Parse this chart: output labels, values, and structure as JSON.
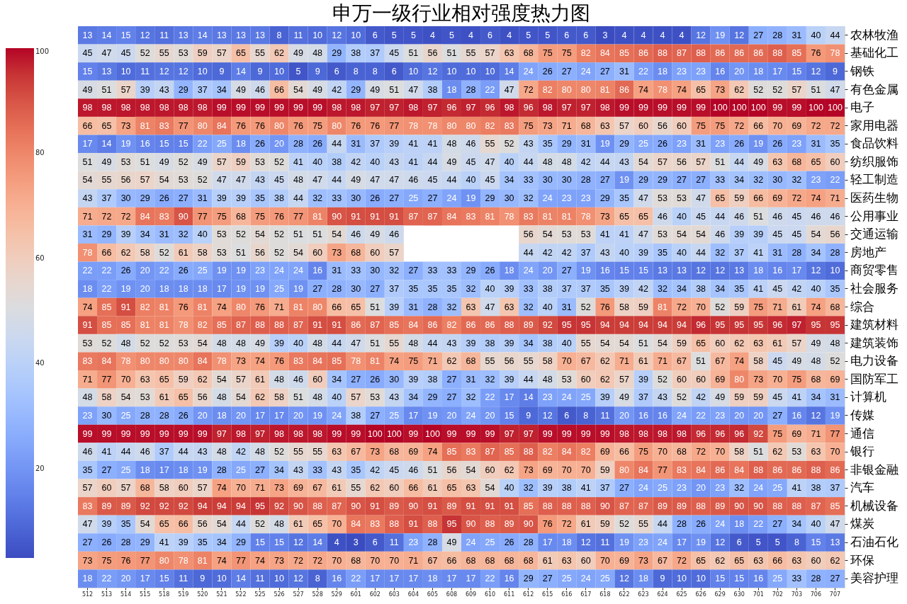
{
  "chart_data": {
    "type": "heatmap",
    "title": "申万一级行业相对强度热力图",
    "categories": [
      "512",
      "513",
      "514",
      "515",
      "518",
      "519",
      "520",
      "521",
      "522",
      "525",
      "526",
      "527",
      "528",
      "529",
      "601",
      "602",
      "603",
      "604",
      "605",
      "608",
      "609",
      "610",
      "611",
      "612",
      "615",
      "616",
      "617",
      "618",
      "622",
      "623",
      "624",
      "625",
      "626",
      "629",
      "630",
      "701",
      "702",
      "703",
      "706",
      "707"
    ],
    "y_categories": [
      "农林牧渔",
      "基础化工",
      "钢铁",
      "有色金属",
      "电子",
      "家用电器",
      "食品饮料",
      "纺织服饰",
      "轻工制造",
      "医药生物",
      "公用事业",
      "交通运输",
      "房地产",
      "商贸零售",
      "社会服务",
      "综合",
      "建筑材料",
      "建筑装饰",
      "电力设备",
      "国防军工",
      "计算机",
      "传媒",
      "通信",
      "银行",
      "非银金融",
      "汽车",
      "机械设备",
      "煤炭",
      "石油石化",
      "环保",
      "美容护理"
    ],
    "cells": [
      [
        13,
        14,
        15,
        12,
        11,
        13,
        14,
        13,
        13,
        13,
        8,
        11,
        10,
        12,
        10,
        6,
        5,
        5,
        4,
        5,
        4,
        6,
        4,
        5,
        5,
        6,
        6,
        3,
        4,
        4,
        4,
        4,
        12,
        19,
        12,
        27,
        28,
        31,
        40,
        44
      ],
      [
        45,
        47,
        45,
        52,
        55,
        53,
        59,
        57,
        65,
        55,
        62,
        49,
        48,
        29,
        38,
        37,
        45,
        51,
        56,
        51,
        55,
        57,
        63,
        68,
        75,
        75,
        82,
        84,
        85,
        86,
        88,
        87,
        88,
        86,
        86,
        86,
        88,
        85,
        76,
        78
      ],
      [
        15,
        13,
        10,
        11,
        12,
        12,
        10,
        9,
        14,
        9,
        10,
        5,
        9,
        6,
        8,
        8,
        6,
        10,
        12,
        10,
        10,
        10,
        14,
        24,
        26,
        27,
        24,
        27,
        31,
        22,
        18,
        23,
        23,
        16,
        20,
        18,
        17,
        15,
        12,
        9
      ],
      [
        49,
        51,
        57,
        39,
        43,
        29,
        37,
        34,
        49,
        46,
        66,
        54,
        49,
        42,
        29,
        49,
        51,
        47,
        38,
        18,
        28,
        22,
        47,
        72,
        82,
        80,
        80,
        81,
        86,
        74,
        78,
        74,
        65,
        73,
        62,
        52,
        52,
        57,
        51,
        47
      ],
      [
        98,
        98,
        98,
        98,
        98,
        98,
        98,
        99,
        99,
        99,
        99,
        99,
        99,
        98,
        98,
        97,
        97,
        98,
        97,
        96,
        97,
        96,
        98,
        96,
        98,
        97,
        97,
        98,
        99,
        99,
        99,
        99,
        99,
        100,
        100,
        100,
        99,
        99,
        100,
        100
      ],
      [
        66,
        65,
        73,
        81,
        83,
        77,
        80,
        84,
        76,
        76,
        80,
        76,
        75,
        80,
        76,
        76,
        77,
        78,
        78,
        80,
        80,
        82,
        83,
        75,
        73,
        71,
        68,
        63,
        57,
        60,
        56,
        60,
        75,
        75,
        72,
        66,
        70,
        69,
        72,
        72
      ],
      [
        17,
        14,
        19,
        16,
        15,
        15,
        22,
        25,
        18,
        26,
        20,
        28,
        26,
        44,
        31,
        37,
        39,
        41,
        41,
        48,
        46,
        55,
        52,
        43,
        35,
        29,
        31,
        19,
        29,
        25,
        26,
        23,
        31,
        23,
        26,
        19,
        26,
        23,
        31,
        35
      ],
      [
        51,
        49,
        53,
        51,
        49,
        52,
        49,
        57,
        59,
        53,
        52,
        41,
        40,
        38,
        42,
        40,
        43,
        41,
        44,
        49,
        45,
        47,
        40,
        44,
        48,
        48,
        42,
        44,
        43,
        54,
        57,
        56,
        57,
        51,
        44,
        49,
        63,
        68,
        65,
        60
      ],
      [
        54,
        55,
        56,
        57,
        54,
        53,
        52,
        47,
        47,
        43,
        45,
        48,
        47,
        44,
        49,
        47,
        47,
        46,
        45,
        44,
        40,
        45,
        34,
        33,
        30,
        30,
        28,
        27,
        19,
        29,
        29,
        27,
        27,
        33,
        34,
        32,
        30,
        32,
        23,
        22
      ],
      [
        43,
        37,
        30,
        29,
        26,
        27,
        31,
        39,
        39,
        35,
        38,
        44,
        32,
        33,
        30,
        26,
        27,
        25,
        27,
        24,
        19,
        29,
        30,
        32,
        24,
        23,
        23,
        29,
        35,
        47,
        53,
        53,
        47,
        65,
        59,
        66,
        69,
        72,
        74,
        71
      ],
      [
        71,
        72,
        72,
        84,
        83,
        90,
        77,
        75,
        68,
        75,
        76,
        77,
        81,
        90,
        91,
        91,
        91,
        87,
        87,
        84,
        83,
        81,
        78,
        83,
        81,
        81,
        78,
        73,
        65,
        65,
        46,
        40,
        45,
        44,
        46,
        51,
        46,
        45,
        46,
        46
      ],
      [
        31,
        29,
        39,
        34,
        31,
        32,
        40,
        53,
        52,
        54,
        52,
        51,
        51,
        54,
        46,
        49,
        46,
        null,
        null,
        null,
        null,
        null,
        null,
        56,
        54,
        53,
        53,
        41,
        41,
        47,
        53,
        54,
        54,
        46,
        39,
        39,
        45,
        45,
        54,
        56
      ],
      [
        78,
        66,
        62,
        58,
        52,
        61,
        58,
        53,
        51,
        56,
        52,
        54,
        60,
        73,
        68,
        60,
        57,
        null,
        null,
        null,
        null,
        null,
        null,
        44,
        42,
        42,
        37,
        43,
        40,
        39,
        35,
        40,
        44,
        32,
        37,
        41,
        31,
        28,
        34,
        28
      ],
      [
        22,
        22,
        26,
        20,
        22,
        26,
        25,
        19,
        19,
        23,
        24,
        24,
        16,
        31,
        33,
        30,
        32,
        27,
        33,
        33,
        29,
        26,
        18,
        24,
        20,
        27,
        19,
        16,
        15,
        15,
        13,
        13,
        12,
        12,
        13,
        18,
        16,
        17,
        12,
        10
      ],
      [
        18,
        22,
        19,
        20,
        18,
        18,
        18,
        17,
        19,
        19,
        25,
        19,
        27,
        28,
        30,
        27,
        37,
        35,
        35,
        35,
        32,
        40,
        39,
        33,
        38,
        37,
        37,
        35,
        39,
        42,
        32,
        34,
        38,
        34,
        35,
        41,
        45,
        42,
        40,
        35
      ],
      [
        74,
        85,
        91,
        82,
        81,
        76,
        81,
        74,
        80,
        76,
        71,
        81,
        80,
        66,
        65,
        51,
        39,
        31,
        28,
        32,
        63,
        47,
        63,
        32,
        40,
        31,
        52,
        76,
        58,
        59,
        81,
        72,
        70,
        52,
        59,
        75,
        71,
        61,
        74,
        68
      ],
      [
        91,
        85,
        85,
        81,
        81,
        78,
        82,
        85,
        87,
        88,
        88,
        87,
        91,
        91,
        86,
        87,
        85,
        84,
        86,
        82,
        86,
        86,
        88,
        89,
        92,
        95,
        95,
        94,
        94,
        94,
        94,
        94,
        96,
        95,
        95,
        95,
        96,
        97,
        95,
        95
      ],
      [
        53,
        52,
        48,
        52,
        52,
        53,
        54,
        48,
        48,
        49,
        39,
        40,
        48,
        44,
        47,
        51,
        55,
        48,
        44,
        43,
        39,
        38,
        39,
        34,
        38,
        40,
        55,
        54,
        54,
        51,
        54,
        59,
        65,
        60,
        62,
        63,
        61,
        57,
        49,
        48
      ],
      [
        83,
        84,
        78,
        80,
        80,
        80,
        84,
        78,
        73,
        74,
        76,
        83,
        84,
        85,
        78,
        81,
        74,
        75,
        71,
        62,
        68,
        55,
        56,
        55,
        58,
        70,
        67,
        62,
        71,
        61,
        71,
        67,
        51,
        67,
        74,
        58,
        45,
        49,
        48,
        52
      ],
      [
        71,
        77,
        70,
        63,
        65,
        59,
        62,
        54,
        57,
        61,
        48,
        46,
        60,
        34,
        27,
        26,
        30,
        39,
        38,
        27,
        31,
        32,
        39,
        44,
        48,
        53,
        60,
        62,
        57,
        39,
        52,
        60,
        60,
        69,
        80,
        73,
        70,
        75,
        68,
        69
      ],
      [
        48,
        58,
        54,
        53,
        61,
        65,
        56,
        48,
        54,
        62,
        58,
        51,
        48,
        40,
        57,
        53,
        43,
        34,
        29,
        27,
        32,
        22,
        17,
        14,
        23,
        24,
        25,
        39,
        49,
        37,
        43,
        52,
        42,
        49,
        59,
        59,
        45,
        41,
        34,
        31
      ],
      [
        23,
        30,
        25,
        28,
        28,
        26,
        20,
        18,
        20,
        17,
        17,
        20,
        19,
        24,
        38,
        27,
        25,
        17,
        19,
        20,
        24,
        20,
        15,
        9,
        12,
        6,
        8,
        11,
        20,
        16,
        16,
        24,
        22,
        23,
        20,
        20,
        27,
        16,
        12,
        19
      ],
      [
        99,
        99,
        99,
        99,
        99,
        99,
        99,
        97,
        98,
        97,
        98,
        98,
        98,
        99,
        99,
        100,
        100,
        99,
        100,
        99,
        99,
        99,
        97,
        97,
        99,
        99,
        99,
        99,
        98,
        98,
        98,
        98,
        96,
        96,
        96,
        92,
        75,
        69,
        71,
        77
      ],
      [
        46,
        41,
        44,
        46,
        37,
        44,
        43,
        48,
        42,
        48,
        52,
        55,
        55,
        63,
        67,
        73,
        68,
        69,
        74,
        85,
        83,
        87,
        85,
        88,
        82,
        84,
        82,
        69,
        66,
        75,
        70,
        68,
        72,
        70,
        58,
        51,
        62,
        53,
        63,
        70
      ],
      [
        35,
        27,
        25,
        18,
        17,
        18,
        19,
        28,
        25,
        27,
        34,
        43,
        33,
        43,
        35,
        42,
        45,
        46,
        51,
        56,
        54,
        60,
        62,
        73,
        69,
        70,
        70,
        59,
        80,
        84,
        77,
        83,
        84,
        86,
        84,
        88,
        86,
        86,
        88,
        86
      ],
      [
        57,
        60,
        57,
        68,
        58,
        60,
        57,
        74,
        70,
        71,
        73,
        69,
        67,
        61,
        55,
        62,
        60,
        66,
        61,
        65,
        63,
        54,
        40,
        32,
        39,
        38,
        41,
        37,
        27,
        24,
        25,
        23,
        20,
        23,
        32,
        24,
        25,
        41,
        38,
        37
      ],
      [
        83,
        89,
        89,
        92,
        92,
        92,
        94,
        94,
        94,
        95,
        92,
        90,
        88,
        87,
        90,
        91,
        89,
        90,
        91,
        89,
        91,
        91,
        91,
        85,
        88,
        88,
        88,
        90,
        87,
        87,
        89,
        89,
        88,
        89,
        90,
        90,
        88,
        88,
        87,
        85
      ],
      [
        47,
        39,
        35,
        54,
        65,
        66,
        56,
        54,
        44,
        52,
        48,
        61,
        65,
        70,
        84,
        83,
        88,
        91,
        88,
        95,
        90,
        88,
        89,
        90,
        76,
        72,
        61,
        59,
        52,
        55,
        44,
        28,
        26,
        24,
        18,
        22,
        27,
        34,
        40,
        47
      ],
      [
        27,
        26,
        28,
        29,
        41,
        39,
        35,
        34,
        29,
        15,
        15,
        12,
        14,
        4,
        3,
        6,
        11,
        23,
        28,
        49,
        24,
        25,
        26,
        28,
        17,
        18,
        12,
        11,
        19,
        23,
        24,
        17,
        19,
        12,
        6,
        5,
        5,
        8,
        15,
        13
      ],
      [
        73,
        75,
        76,
        77,
        80,
        78,
        81,
        74,
        77,
        74,
        73,
        72,
        72,
        70,
        68,
        70,
        70,
        71,
        67,
        66,
        68,
        68,
        68,
        68,
        61,
        63,
        60,
        70,
        69,
        73,
        67,
        72,
        65,
        62,
        65,
        63,
        66,
        63,
        60,
        62
      ],
      [
        18,
        22,
        20,
        17,
        15,
        11,
        9,
        10,
        14,
        11,
        10,
        12,
        8,
        16,
        22,
        17,
        17,
        17,
        18,
        17,
        17,
        22,
        16,
        29,
        27,
        25,
        24,
        25,
        12,
        18,
        9,
        10,
        10,
        15,
        15,
        16,
        25,
        33,
        28,
        27
      ]
    ],
    "clim": [
      3,
      100
    ],
    "cticks": [
      20,
      40,
      60,
      80,
      100
    ],
    "data_labels": true
  }
}
